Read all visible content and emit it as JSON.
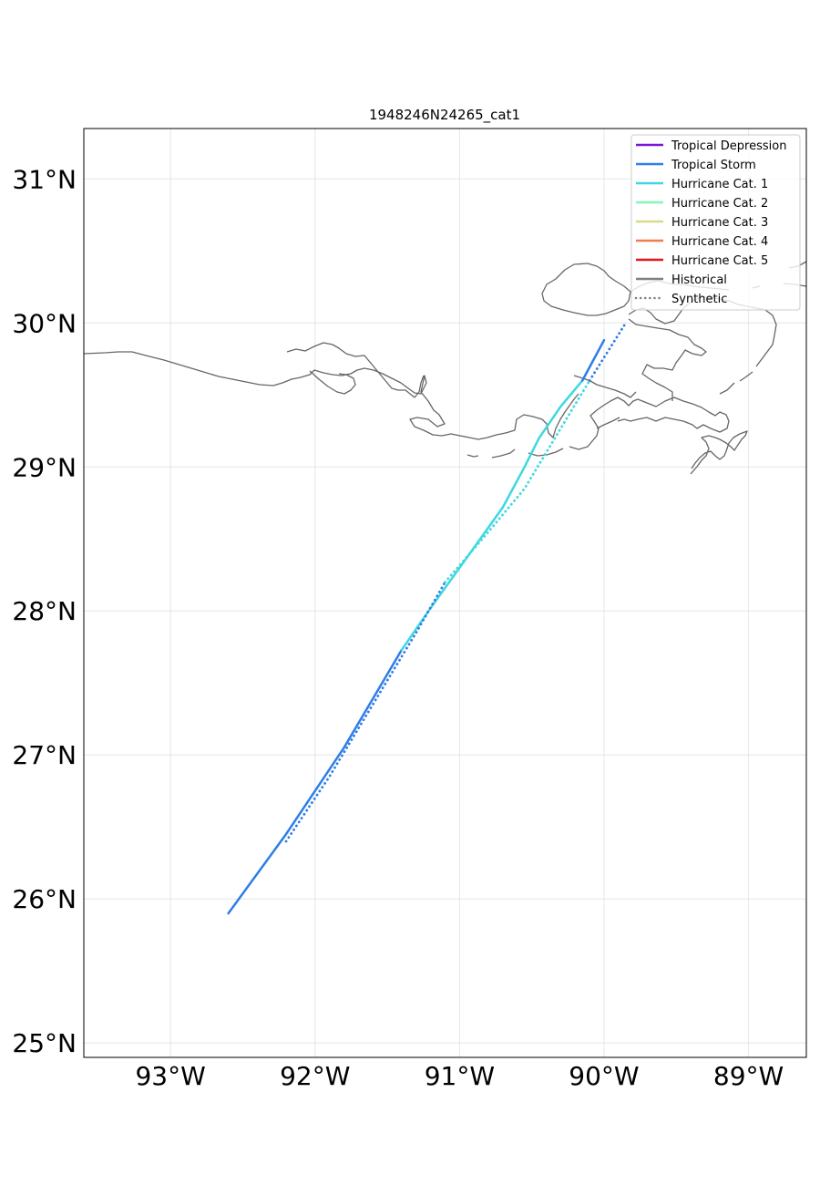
{
  "chart_data": {
    "type": "map-track",
    "title": "1948246N24265_cat1",
    "lon_range": [
      -93.6,
      -88.6
    ],
    "lat_range": [
      24.9,
      31.35
    ],
    "x_ticks": [
      {
        "value": -93,
        "label": "93°W"
      },
      {
        "value": -92,
        "label": "92°W"
      },
      {
        "value": -91,
        "label": "91°W"
      },
      {
        "value": -90,
        "label": "90°W"
      },
      {
        "value": -89,
        "label": "89°W"
      }
    ],
    "y_ticks": [
      {
        "value": 25,
        "label": "25°N"
      },
      {
        "value": 26,
        "label": "26°N"
      },
      {
        "value": 27,
        "label": "27°N"
      },
      {
        "value": 28,
        "label": "28°N"
      },
      {
        "value": 29,
        "label": "29°N"
      },
      {
        "value": 30,
        "label": "30°N"
      },
      {
        "value": 31,
        "label": "31°N"
      }
    ],
    "grid": true,
    "legend_position": "top-right",
    "legend": [
      {
        "label": "Tropical Depression",
        "color": "#7b16e0",
        "style": "solid"
      },
      {
        "label": "Tropical Storm",
        "color": "#2e7de8",
        "style": "solid"
      },
      {
        "label": "Hurricane Cat. 1",
        "color": "#3dd8e0",
        "style": "solid"
      },
      {
        "label": "Hurricane Cat. 2",
        "color": "#86f5b9",
        "style": "solid"
      },
      {
        "label": "Hurricane Cat. 3",
        "color": "#d9d98c",
        "style": "solid"
      },
      {
        "label": "Hurricane Cat. 4",
        "color": "#f07d4f",
        "style": "solid"
      },
      {
        "label": "Hurricane Cat. 5",
        "color": "#e31515",
        "style": "solid"
      },
      {
        "label": "Historical",
        "color": "#808080",
        "style": "solid"
      },
      {
        "label": "Synthetic",
        "color": "#808080",
        "style": "dotted"
      }
    ],
    "series": [
      {
        "name": "Historical",
        "style": "solid",
        "segments": [
          {
            "category": "Tropical Storm",
            "color": "#2e7de8",
            "points": [
              [
                -92.6,
                25.9
              ],
              [
                -92.2,
                26.45
              ],
              [
                -91.8,
                27.05
              ],
              [
                -91.4,
                27.73
              ]
            ]
          },
          {
            "category": "Hurricane Cat. 1",
            "color": "#3dd8e0",
            "points": [
              [
                -91.4,
                27.73
              ],
              [
                -91.2,
                28.02
              ],
              [
                -91.0,
                28.3
              ],
              [
                -90.7,
                28.72
              ],
              [
                -90.55,
                29.0
              ],
              [
                -90.45,
                29.2
              ],
              [
                -90.3,
                29.42
              ],
              [
                -90.15,
                29.6
              ]
            ]
          },
          {
            "category": "Tropical Storm",
            "color": "#2e7de8",
            "points": [
              [
                -90.15,
                29.6
              ],
              [
                -90.0,
                29.88
              ]
            ]
          }
        ]
      },
      {
        "name": "Synthetic",
        "style": "dotted",
        "segments": [
          {
            "category": "Tropical Storm",
            "color": "#2e7de8",
            "points": [
              [
                -92.2,
                26.4
              ],
              [
                -91.9,
                26.85
              ],
              [
                -91.6,
                27.35
              ],
              [
                -91.3,
                27.85
              ],
              [
                -91.1,
                28.2
              ]
            ]
          },
          {
            "category": "Hurricane Cat. 1",
            "color": "#3dd8e0",
            "points": [
              [
                -91.1,
                28.2
              ],
              [
                -90.8,
                28.55
              ],
              [
                -90.55,
                28.85
              ],
              [
                -90.4,
                29.1
              ],
              [
                -90.25,
                29.35
              ],
              [
                -90.1,
                29.6
              ]
            ]
          },
          {
            "category": "Tropical Storm",
            "color": "#2e7de8",
            "points": [
              [
                -90.1,
                29.6
              ],
              [
                -89.85,
                30.0
              ]
            ]
          }
        ]
      }
    ]
  }
}
